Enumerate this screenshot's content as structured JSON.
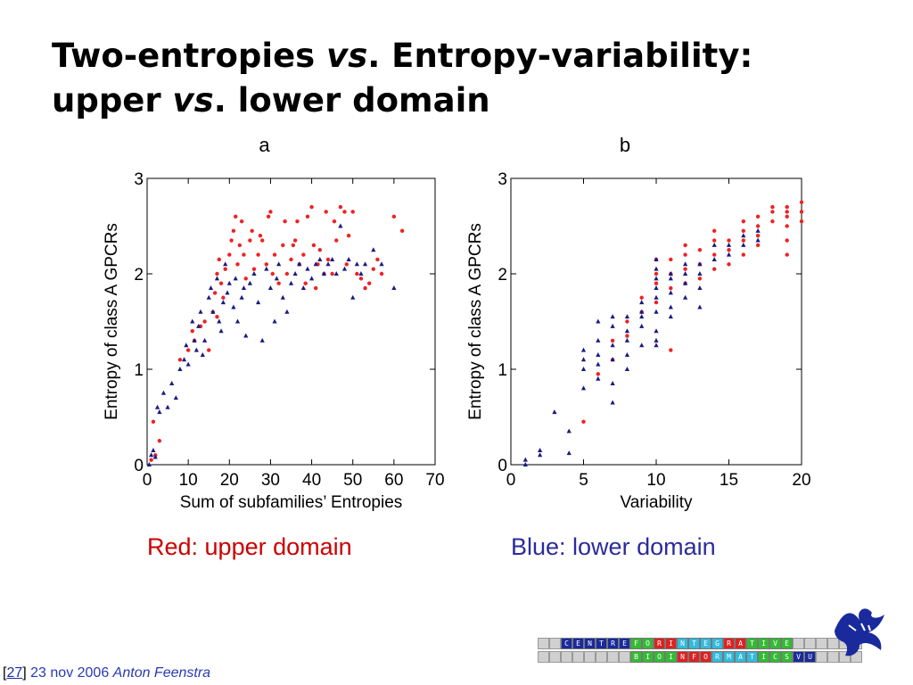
{
  "slide": {
    "title_part1": "Two-entropies ",
    "title_vs1": "vs",
    "title_part2": ". Entropy-variability:",
    "title_part3": "upper ",
    "title_vs2": "vs",
    "title_part4": ". lower domain"
  },
  "captions": {
    "red": "Red: upper domain",
    "blue": "Blue: lower domain",
    "red_color": "#cc0000",
    "blue_color": "#2b2b9c"
  },
  "footer": {
    "open_bracket": "[",
    "page_number": "27",
    "close_bracket": "]",
    "date": " 23 nov 2006 ",
    "author": "Anton Feenstra"
  },
  "logo": {
    "row1": [
      "C",
      "E",
      "N",
      "T",
      "R",
      "E",
      "F",
      "O",
      "R",
      "I",
      "N",
      "T",
      "E",
      "G",
      "R",
      "A",
      "T",
      "I",
      "V",
      "E"
    ],
    "row2": [
      "B",
      "I",
      "O",
      "I",
      "N",
      "F",
      "O",
      "R",
      "M",
      "A",
      "T",
      "I",
      "C",
      "S",
      "V",
      "U"
    ],
    "row1_colors": [
      "#1a2a9c",
      "#1a2a9c",
      "#1a2a9c",
      "#1a2a9c",
      "#1a2a9c",
      "#1a2a9c",
      "#33bb33",
      "#33bb33",
      "#dd2222",
      "#dd2222",
      "#33bbdd",
      "#33bbdd",
      "#33bbdd",
      "#33bbdd",
      "#dd2222",
      "#dd2222",
      "#33bb33",
      "#33bb33",
      "#33bb33",
      "#33bb33"
    ],
    "row2_colors": [
      "#33bb33",
      "#33bb33",
      "#33bb33",
      "#33bb33",
      "#dd2222",
      "#dd2222",
      "#dd2222",
      "#33bbdd",
      "#33bbdd",
      "#33bbdd",
      "#33bbdd",
      "#33bb33",
      "#33bb33",
      "#33bb33",
      "#1a2a9c",
      "#1a2a9c"
    ]
  },
  "chart_data": [
    {
      "type": "scatter",
      "title": "a",
      "xlabel": "Sum of subfamilies’ Entropies",
      "ylabel": "Entropy of class A GPCRs",
      "xlim": [
        0,
        70
      ],
      "ylim": [
        0,
        3
      ],
      "xticks": [
        "0",
        "10",
        "20",
        "30",
        "40",
        "50",
        "60",
        "70"
      ],
      "yticks": [
        "0",
        "1",
        "2",
        "3"
      ],
      "grid": false,
      "series": [
        {
          "color": "#ee2222",
          "marker": "dot",
          "points": [
            [
              1,
              0.05
            ],
            [
              2,
              0.1
            ],
            [
              3,
              0.25
            ],
            [
              1.5,
              0.45
            ],
            [
              8,
              1.1
            ],
            [
              10,
              1.2
            ],
            [
              11,
              1.4
            ],
            [
              11.5,
              1.3
            ],
            [
              13,
              1.45
            ],
            [
              14,
              1.5
            ],
            [
              15,
              1.2
            ],
            [
              16,
              1.6
            ],
            [
              16.5,
              1.8
            ],
            [
              17,
              1.55
            ],
            [
              17,
              2.0
            ],
            [
              17.5,
              2.15
            ],
            [
              18,
              1.9
            ],
            [
              18.5,
              1.75
            ],
            [
              19,
              2.05
            ],
            [
              20,
              2.2
            ],
            [
              20.5,
              2.35
            ],
            [
              21,
              2.45
            ],
            [
              21.5,
              2.6
            ],
            [
              22,
              2.1
            ],
            [
              22.5,
              2.3
            ],
            [
              23,
              2.55
            ],
            [
              23.5,
              2.2
            ],
            [
              24,
              1.95
            ],
            [
              25,
              2.35
            ],
            [
              25.5,
              2.45
            ],
            [
              26,
              2.05
            ],
            [
              27,
              2.2
            ],
            [
              27.5,
              2.4
            ],
            [
              28,
              2.35
            ],
            [
              29,
              2.1
            ],
            [
              29.5,
              2.6
            ],
            [
              30,
              2.65
            ],
            [
              30.5,
              2.0
            ],
            [
              31,
              2.2
            ],
            [
              32,
              1.9
            ],
            [
              33,
              2.3
            ],
            [
              33.5,
              2.55
            ],
            [
              34,
              2.0
            ],
            [
              35,
              2.15
            ],
            [
              35.5,
              2.3
            ],
            [
              36,
              2.35
            ],
            [
              36.5,
              2.55
            ],
            [
              37,
              2.1
            ],
            [
              38,
              2.2
            ],
            [
              38.5,
              1.9
            ],
            [
              39,
              2.6
            ],
            [
              40,
              2.7
            ],
            [
              40.5,
              2.3
            ],
            [
              41,
              1.85
            ],
            [
              41.5,
              2.1
            ],
            [
              42,
              2.25
            ],
            [
              43,
              2.0
            ],
            [
              43.5,
              2.65
            ],
            [
              44,
              2.15
            ],
            [
              45,
              2.0
            ],
            [
              45.5,
              2.55
            ],
            [
              46,
              2.35
            ],
            [
              47,
              2.7
            ],
            [
              48,
              2.65
            ],
            [
              48.5,
              2.1
            ],
            [
              49,
              2.4
            ],
            [
              50,
              2.65
            ],
            [
              51,
              2.0
            ],
            [
              52,
              1.95
            ],
            [
              53,
              1.85
            ],
            [
              54,
              1.9
            ],
            [
              55,
              2.05
            ],
            [
              56,
              2.15
            ],
            [
              57,
              2.0
            ],
            [
              60,
              2.6
            ],
            [
              62,
              2.45
            ]
          ]
        },
        {
          "color": "#1a1a80",
          "marker": "triangle",
          "points": [
            [
              0.5,
              0.0
            ],
            [
              1,
              0.1
            ],
            [
              1.5,
              0.15
            ],
            [
              2,
              0.08
            ],
            [
              2.5,
              0.6
            ],
            [
              3,
              0.55
            ],
            [
              4,
              0.75
            ],
            [
              5,
              0.6
            ],
            [
              6,
              0.85
            ],
            [
              7,
              0.7
            ],
            [
              8,
              1.0
            ],
            [
              9,
              1.1
            ],
            [
              9.5,
              1.25
            ],
            [
              10,
              1.05
            ],
            [
              11,
              1.5
            ],
            [
              11.5,
              1.3
            ],
            [
              12,
              1.2
            ],
            [
              12.5,
              1.45
            ],
            [
              13,
              1.6
            ],
            [
              13.5,
              1.15
            ],
            [
              14,
              1.3
            ],
            [
              15,
              1.75
            ],
            [
              15.5,
              1.85
            ],
            [
              16,
              1.6
            ],
            [
              17,
              1.95
            ],
            [
              17.5,
              1.5
            ],
            [
              18,
              1.4
            ],
            [
              18.5,
              1.7
            ],
            [
              19,
              2.1
            ],
            [
              19.5,
              1.8
            ],
            [
              20,
              1.9
            ],
            [
              21,
              1.65
            ],
            [
              21.5,
              1.95
            ],
            [
              22,
              1.5
            ],
            [
              23,
              1.75
            ],
            [
              23.5,
              1.85
            ],
            [
              24,
              1.35
            ],
            [
              25,
              1.9
            ],
            [
              26,
              2.0
            ],
            [
              27,
              1.7
            ],
            [
              28,
              1.3
            ],
            [
              29,
              2.05
            ],
            [
              30,
              1.85
            ],
            [
              31,
              1.5
            ],
            [
              31.5,
              1.95
            ],
            [
              32,
              2.1
            ],
            [
              33,
              1.75
            ],
            [
              34,
              1.6
            ],
            [
              35,
              1.9
            ],
            [
              36,
              2.0
            ],
            [
              37,
              2.1
            ],
            [
              38,
              1.85
            ],
            [
              39,
              2.05
            ],
            [
              40,
              1.95
            ],
            [
              41,
              2.1
            ],
            [
              42,
              2.15
            ],
            [
              43,
              2.0
            ],
            [
              44,
              2.1
            ],
            [
              45,
              2.15
            ],
            [
              46,
              2.0
            ],
            [
              47,
              2.5
            ],
            [
              48,
              2.05
            ],
            [
              49,
              2.15
            ],
            [
              50,
              1.75
            ],
            [
              51,
              2.1
            ],
            [
              52,
              2.0
            ],
            [
              53,
              2.1
            ],
            [
              55,
              2.25
            ],
            [
              57,
              2.1
            ],
            [
              60,
              1.85
            ]
          ]
        }
      ]
    },
    {
      "type": "scatter",
      "title": "b",
      "xlabel": "Variability",
      "ylabel": "Entropy of class A GPCRs",
      "xlim": [
        0,
        20
      ],
      "ylim": [
        0,
        3
      ],
      "xticks": [
        "0",
        "5",
        "10",
        "15",
        "20"
      ],
      "yticks": [
        "0",
        "1",
        "2",
        "3"
      ],
      "grid": false,
      "series": [
        {
          "color": "#ee2222",
          "marker": "dot",
          "points": [
            [
              5,
              0.45
            ],
            [
              6,
              0.95
            ],
            [
              7,
              1.1
            ],
            [
              7,
              1.3
            ],
            [
              8,
              1.5
            ],
            [
              8,
              1.35
            ],
            [
              9,
              1.6
            ],
            [
              9,
              1.75
            ],
            [
              10,
              1.9
            ],
            [
              10,
              1.7
            ],
            [
              10,
              2.0
            ],
            [
              10,
              2.15
            ],
            [
              11,
              1.2
            ],
            [
              11,
              1.85
            ],
            [
              11,
              2.0
            ],
            [
              11,
              2.15
            ],
            [
              12,
              1.9
            ],
            [
              12,
              2.05
            ],
            [
              12,
              2.2
            ],
            [
              12,
              2.3
            ],
            [
              13,
              1.95
            ],
            [
              13,
              2.1
            ],
            [
              13,
              2.25
            ],
            [
              14,
              2.05
            ],
            [
              14,
              2.2
            ],
            [
              14,
              2.35
            ],
            [
              14,
              2.45
            ],
            [
              15,
              2.1
            ],
            [
              15,
              2.25
            ],
            [
              15,
              2.35
            ],
            [
              16,
              2.2
            ],
            [
              16,
              2.35
            ],
            [
              16,
              2.45
            ],
            [
              16,
              2.55
            ],
            [
              17,
              2.3
            ],
            [
              17,
              2.4
            ],
            [
              17,
              2.5
            ],
            [
              17,
              2.6
            ],
            [
              18,
              2.55
            ],
            [
              18,
              2.65
            ],
            [
              18,
              2.7
            ],
            [
              19,
              2.2
            ],
            [
              19,
              2.35
            ],
            [
              19,
              2.5
            ],
            [
              19,
              2.6
            ],
            [
              19,
              2.65
            ],
            [
              19,
              2.7
            ],
            [
              20,
              2.55
            ],
            [
              20,
              2.65
            ],
            [
              20,
              2.75
            ]
          ]
        },
        {
          "color": "#1a1a80",
          "marker": "triangle",
          "points": [
            [
              1,
              0.05
            ],
            [
              1,
              0.0
            ],
            [
              2,
              0.1
            ],
            [
              2,
              0.15
            ],
            [
              3,
              0.55
            ],
            [
              4,
              0.35
            ],
            [
              4,
              0.12
            ],
            [
              5,
              0.8
            ],
            [
              5,
              1.0
            ],
            [
              5,
              1.1
            ],
            [
              5,
              1.2
            ],
            [
              6,
              1.5
            ],
            [
              6,
              1.3
            ],
            [
              6,
              1.15
            ],
            [
              6,
              0.9
            ],
            [
              6,
              1.05
            ],
            [
              7,
              0.85
            ],
            [
              7,
              1.45
            ],
            [
              7,
              1.25
            ],
            [
              7,
              1.55
            ],
            [
              7,
              0.65
            ],
            [
              7,
              1.1
            ],
            [
              8,
              1.3
            ],
            [
              8,
              1.55
            ],
            [
              8,
              1.0
            ],
            [
              8,
              1.15
            ],
            [
              8,
              1.4
            ],
            [
              9,
              1.7
            ],
            [
              9,
              1.45
            ],
            [
              9,
              1.25
            ],
            [
              9,
              1.55
            ],
            [
              9,
              1.6
            ],
            [
              10,
              1.85
            ],
            [
              10,
              1.6
            ],
            [
              10,
              1.95
            ],
            [
              10,
              2.05
            ],
            [
              10,
              2.15
            ],
            [
              10,
              1.75
            ],
            [
              10,
              1.4
            ],
            [
              10,
              1.25
            ],
            [
              10,
              1.3
            ],
            [
              11,
              2.0
            ],
            [
              11,
              1.8
            ],
            [
              11,
              1.65
            ],
            [
              11,
              1.55
            ],
            [
              11,
              1.95
            ],
            [
              12,
              1.9
            ],
            [
              12,
              1.75
            ],
            [
              12,
              2.0
            ],
            [
              12,
              2.1
            ],
            [
              13,
              2.0
            ],
            [
              13,
              1.85
            ],
            [
              13,
              1.65
            ],
            [
              13,
              2.1
            ],
            [
              14,
              2.15
            ],
            [
              14,
              2.3
            ],
            [
              15,
              2.3
            ],
            [
              15,
              2.2
            ],
            [
              16,
              2.4
            ],
            [
              16,
              2.3
            ],
            [
              17,
              2.45
            ],
            [
              17,
              2.35
            ]
          ]
        }
      ]
    }
  ]
}
